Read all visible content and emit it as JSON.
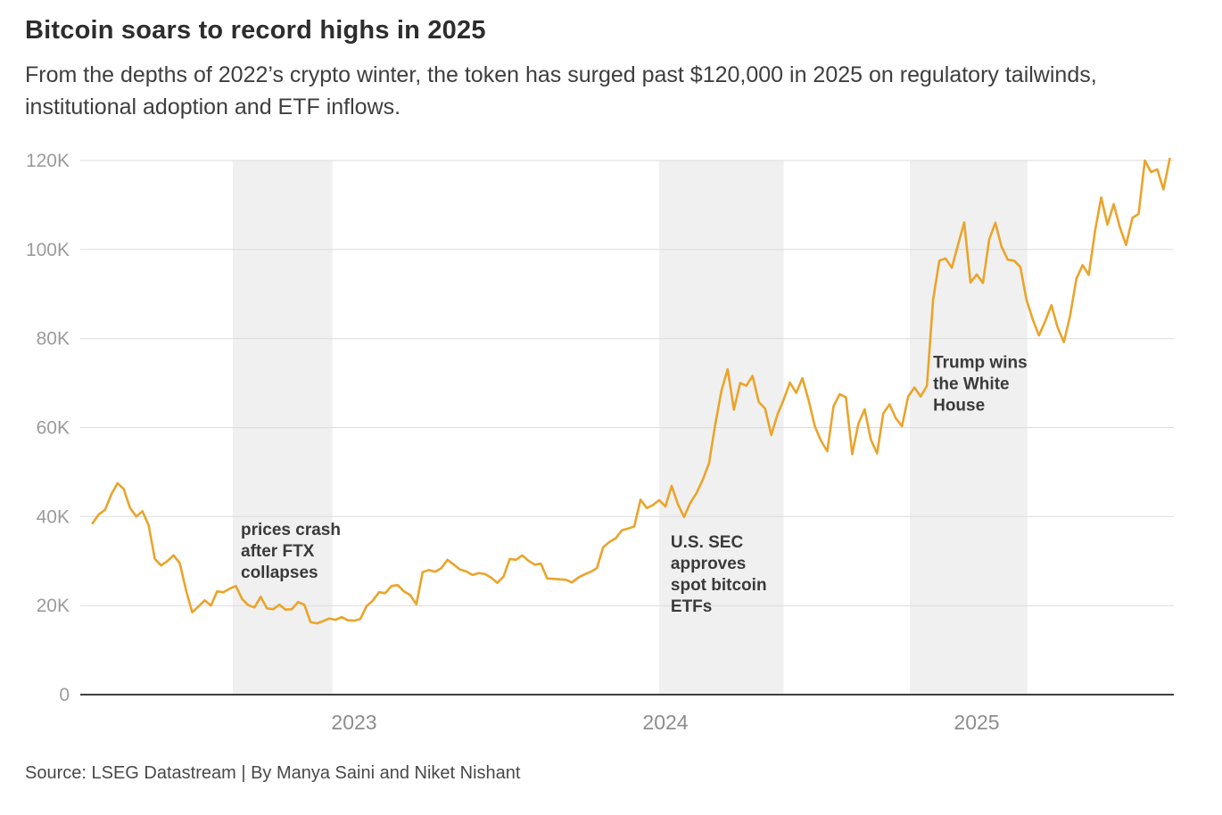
{
  "header": {
    "title": "Bitcoin soars to record highs in 2025",
    "subtitle": "From the depths of 2022’s crypto winter, the token has surged past $120,000 in 2025 on regulatory tailwinds, institutional adoption and ETF inflows."
  },
  "footer": {
    "source": "Source: LSEG Datastream | By Manya Saini and Niket Nishant"
  },
  "chart_data": {
    "type": "line",
    "title": "Bitcoin soars to record highs in 2025",
    "unit": "USD (thousands)",
    "grid": true,
    "legend_position": "none",
    "line_color": "#EAA42A",
    "band_color": "#F0F0F0",
    "grid_color": "#DBDBDB",
    "axis_color": "#3F3F3F",
    "x_axis": {
      "ticks": [
        2023,
        2024,
        2025
      ],
      "labels": [
        "2023",
        "2024",
        "2025"
      ],
      "range": [
        2022.16,
        2025.66
      ]
    },
    "y_axis": {
      "ticks": [
        0,
        20,
        40,
        60,
        80,
        100,
        120
      ],
      "labels": [
        "0",
        "20K",
        "40K",
        "60K",
        "80K",
        "100K",
        "120K"
      ],
      "range": [
        0,
        120
      ]
    },
    "series": [
      {
        "name": "Bitcoin price (USD thousands)",
        "x_start": 2022.16,
        "x_step": 0.02,
        "values": [
          38.5,
          40.5,
          41.5,
          45.0,
          47.5,
          46.2,
          42.0,
          40.0,
          41.2,
          38.0,
          30.5,
          29.0,
          30.0,
          31.3,
          29.5,
          23.5,
          18.5,
          19.8,
          21.2,
          20.0,
          23.2,
          23.0,
          23.8,
          24.4,
          21.5,
          20.1,
          19.6,
          22.0,
          19.4,
          19.2,
          20.2,
          19.1,
          19.2,
          20.8,
          20.2,
          16.3,
          16.0,
          16.5,
          17.1,
          16.8,
          17.4,
          16.7,
          16.6,
          17.0,
          19.9,
          21.1,
          23.0,
          22.8,
          24.4,
          24.6,
          23.2,
          22.4,
          20.3,
          27.5,
          28.0,
          27.6,
          28.4,
          30.3,
          29.2,
          28.1,
          27.7,
          26.9,
          27.3,
          27.1,
          26.3,
          25.1,
          26.5,
          30.5,
          30.3,
          31.3,
          30.1,
          29.2,
          29.4,
          26.1,
          26.0,
          25.9,
          25.8,
          25.2,
          26.3,
          27.0,
          27.6,
          28.4,
          33.1,
          34.3,
          35.1,
          36.9,
          37.3,
          37.8,
          43.8,
          41.9,
          42.6,
          43.7,
          42.3,
          46.9,
          42.8,
          39.9,
          43.1,
          45.3,
          48.3,
          52.0,
          60.6,
          68.3,
          73.1,
          64.0,
          70.0,
          69.4,
          71.6,
          65.7,
          64.3,
          58.3,
          62.9,
          66.3,
          70.1,
          67.8,
          71.1,
          66.2,
          60.3,
          57.0,
          54.7,
          64.8,
          67.5,
          66.8,
          54.0,
          60.9,
          64.1,
          57.3,
          54.2,
          63.2,
          65.2,
          62.1,
          60.3,
          67.0,
          69.0,
          67.0,
          69.4,
          88.7,
          97.5,
          98.0,
          95.9,
          101.1,
          106.1,
          92.6,
          94.4,
          92.5,
          102.3,
          106.0,
          100.6,
          97.7,
          97.5,
          96.1,
          88.7,
          84.3,
          80.7,
          83.9,
          87.5,
          82.5,
          79.2,
          85.1,
          93.4,
          96.5,
          94.3,
          104.1,
          111.7,
          105.6,
          110.2,
          105.0,
          101.0,
          107.1,
          108.0,
          120.0,
          117.4,
          118.0,
          113.5,
          120.4
        ]
      }
    ],
    "events": [
      {
        "name": "ftx-collapse",
        "band": [
          2022.61,
          2022.93
        ],
        "label_lines": [
          "prices crash",
          "after FTX",
          "collapses"
        ],
        "label_anchor": {
          "x": 2022.636,
          "y": 39.3
        }
      },
      {
        "name": "sec-etf-approval",
        "band": [
          2023.98,
          2024.38
        ],
        "label_lines": [
          "U.S. SEC",
          "approves",
          "spot bitcoin",
          "ETFs"
        ],
        "label_anchor": {
          "x": 2024.017,
          "y": 36.5
        }
      },
      {
        "name": "trump-election",
        "band": [
          2024.785,
          2025.163
        ],
        "label_lines": [
          "Trump wins",
          "the White",
          "House"
        ],
        "label_anchor": {
          "x": 2024.86,
          "y": 76.8
        }
      }
    ]
  }
}
